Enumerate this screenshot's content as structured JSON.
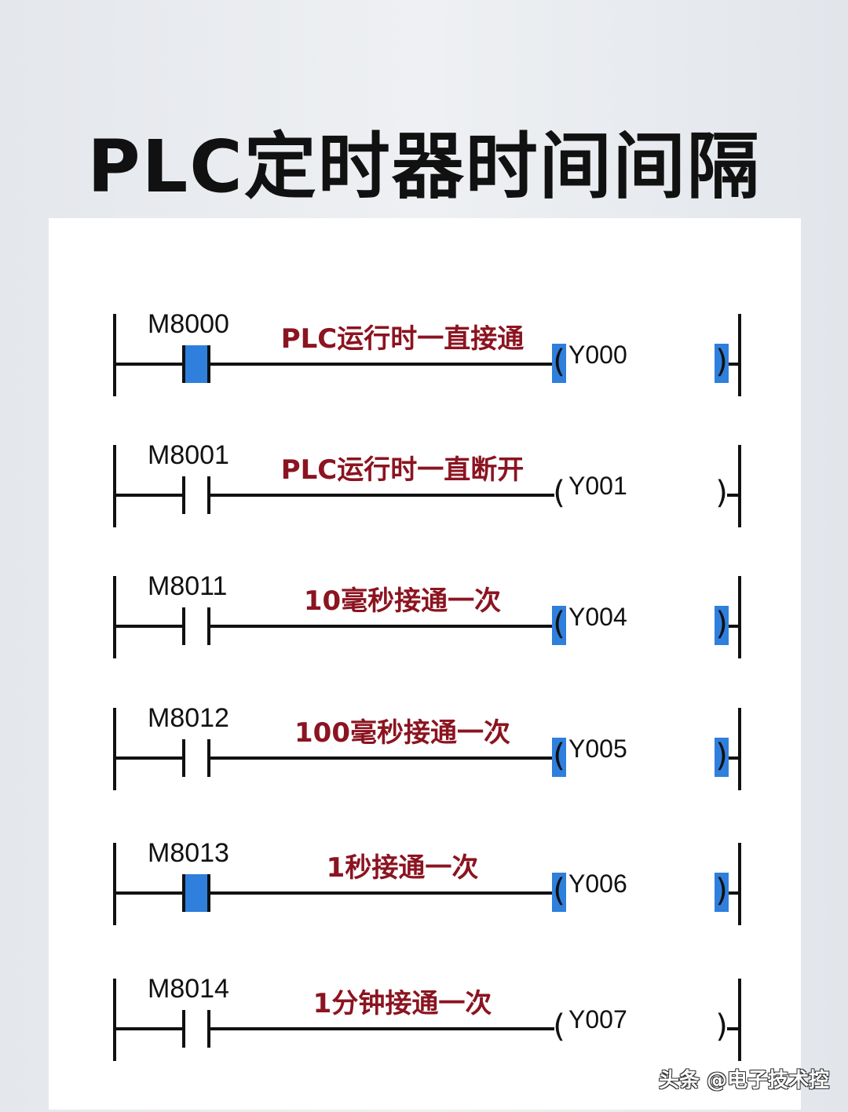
{
  "title": "PLC定时器时间间隔",
  "colors": {
    "highlight": "#2f7fdc",
    "description": "#8b1420",
    "line": "#111111"
  },
  "rungs": [
    {
      "contact": "M8000",
      "description": "PLC运行时一直接通",
      "coil": "Y000",
      "contact_active": true,
      "coil_active": true
    },
    {
      "contact": "M8001",
      "description": "PLC运行时一直断开",
      "coil": "Y001",
      "contact_active": false,
      "coil_active": false
    },
    {
      "contact": "M8011",
      "description": "10毫秒接通一次",
      "coil": "Y004",
      "contact_active": false,
      "coil_active": true
    },
    {
      "contact": "M8012",
      "description": "100毫秒接通一次",
      "coil": "Y005",
      "contact_active": false,
      "coil_active": true
    },
    {
      "contact": "M8013",
      "description": "1秒接通一次",
      "coil": "Y006",
      "contact_active": true,
      "coil_active": true
    },
    {
      "contact": "M8014",
      "description": "1分钟接通一次",
      "coil": "Y007",
      "contact_active": false,
      "coil_active": false
    }
  ],
  "watermark": "头条 @电子技术控"
}
